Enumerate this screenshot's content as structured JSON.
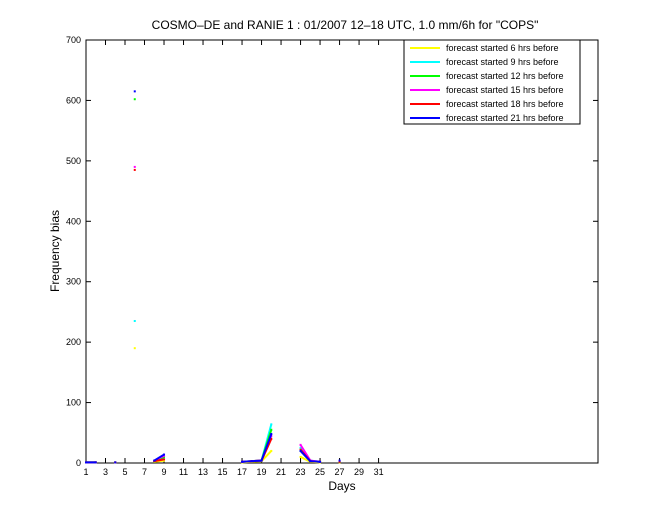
{
  "chart_data": {
    "type": "line",
    "title": "COSMO–DE and RANIE 1 : 01/2007 12–18 UTC, 1.0 mm/6h for \"COPS\"",
    "xlabel": "Days",
    "ylabel": "Frequency bias",
    "xlim": [
      1,
      53.5
    ],
    "ylim": [
      0,
      700
    ],
    "xticks": [
      1,
      3,
      5,
      7,
      9,
      11,
      13,
      15,
      17,
      19,
      21,
      23,
      25,
      27,
      29,
      31
    ],
    "yticks": [
      0,
      100,
      200,
      300,
      400,
      500,
      600,
      700
    ],
    "grid": false,
    "legend_position": "top-right",
    "series": [
      {
        "name": "forecast started 6 hrs before",
        "color": "#ffff00",
        "points": [
          [
            1,
            1
          ],
          [
            2,
            1
          ],
          [
            4,
            1
          ],
          [
            6,
            190
          ],
          [
            8,
            2
          ],
          [
            9,
            4
          ],
          [
            17,
            1
          ],
          [
            18,
            2
          ],
          [
            19,
            3
          ],
          [
            20,
            20
          ],
          [
            23,
            10
          ],
          [
            24,
            2
          ],
          [
            25,
            1
          ],
          [
            27,
            1
          ]
        ]
      },
      {
        "name": "forecast started 9 hrs before",
        "color": "#00ffff",
        "points": [
          [
            1,
            1
          ],
          [
            2,
            1
          ],
          [
            4,
            1
          ],
          [
            6,
            235
          ],
          [
            8,
            3
          ],
          [
            9,
            8
          ],
          [
            17,
            2
          ],
          [
            18,
            3
          ],
          [
            19,
            4
          ],
          [
            20,
            64
          ],
          [
            23,
            25
          ],
          [
            24,
            4
          ],
          [
            25,
            2
          ],
          [
            27,
            2
          ]
        ]
      },
      {
        "name": "forecast started 12 hrs before",
        "color": "#00ff00",
        "points": [
          [
            1,
            1
          ],
          [
            2,
            1
          ],
          [
            4,
            1
          ],
          [
            6,
            602
          ],
          [
            8,
            3
          ],
          [
            9,
            10
          ],
          [
            17,
            2
          ],
          [
            18,
            3
          ],
          [
            19,
            4
          ],
          [
            20,
            55
          ],
          [
            23,
            20
          ],
          [
            24,
            3
          ],
          [
            25,
            2
          ],
          [
            27,
            2
          ]
        ]
      },
      {
        "name": "forecast started 15 hrs before",
        "color": "#ff00ff",
        "points": [
          [
            1,
            1
          ],
          [
            2,
            1
          ],
          [
            4,
            1
          ],
          [
            6,
            490
          ],
          [
            8,
            4
          ],
          [
            9,
            12
          ],
          [
            17,
            2
          ],
          [
            18,
            3
          ],
          [
            19,
            4
          ],
          [
            20,
            45
          ],
          [
            23,
            30
          ],
          [
            24,
            4
          ],
          [
            25,
            2
          ],
          [
            27,
            3
          ]
        ]
      },
      {
        "name": "forecast started 18 hrs before",
        "color": "#ff0000",
        "points": [
          [
            1,
            1
          ],
          [
            2,
            1
          ],
          [
            4,
            1
          ],
          [
            6,
            485
          ],
          [
            8,
            3
          ],
          [
            9,
            6
          ],
          [
            17,
            2
          ],
          [
            18,
            3
          ],
          [
            19,
            4
          ],
          [
            20,
            40
          ],
          [
            23,
            22
          ],
          [
            24,
            3
          ],
          [
            25,
            2
          ],
          [
            27,
            2
          ]
        ]
      },
      {
        "name": "forecast started 21 hrs before",
        "color": "#0000ff",
        "points": [
          [
            1,
            1
          ],
          [
            2,
            1
          ],
          [
            4,
            1
          ],
          [
            6,
            615
          ],
          [
            8,
            4
          ],
          [
            9,
            14
          ],
          [
            17,
            2
          ],
          [
            18,
            3
          ],
          [
            19,
            4
          ],
          [
            20,
            48
          ],
          [
            23,
            20
          ],
          [
            24,
            3
          ],
          [
            25,
            2
          ],
          [
            27,
            4
          ]
        ]
      }
    ]
  }
}
